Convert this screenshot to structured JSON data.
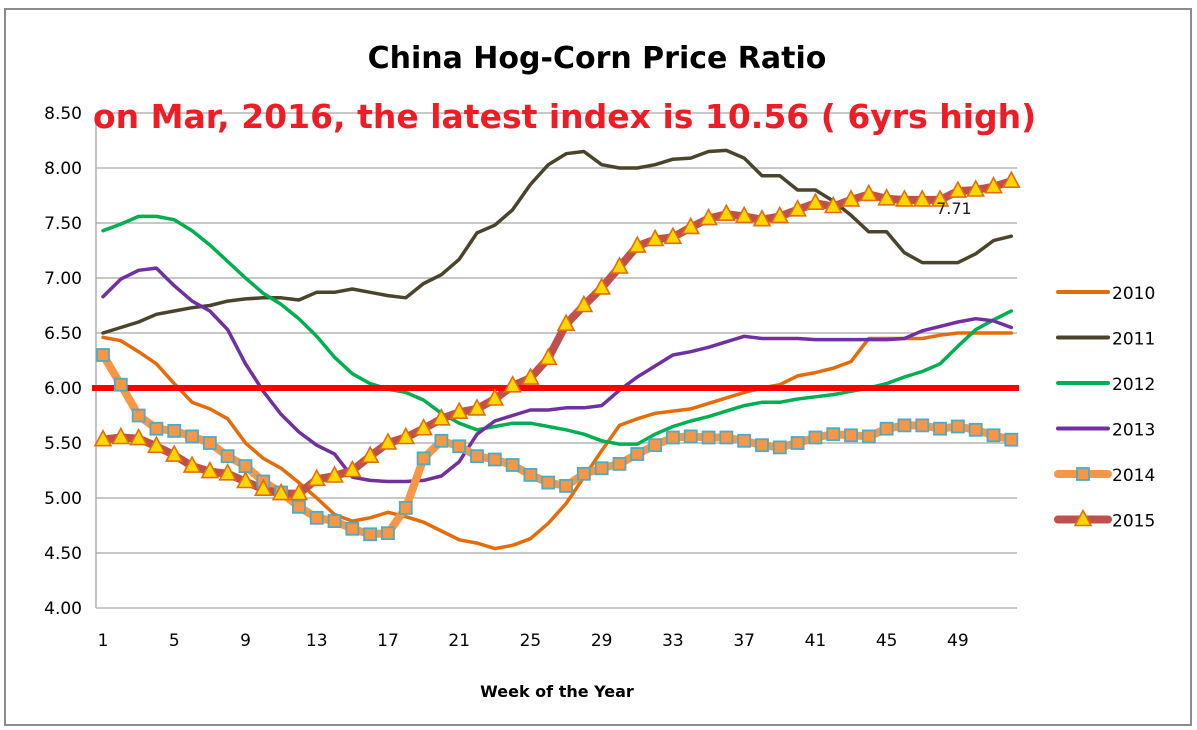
{
  "chart_data": {
    "type": "line",
    "title": "China Hog-Corn Price Ratio",
    "subtitle": "on Mar, 2016, the latest index is 10.56 ( 6yrs high)",
    "xlabel": "Week of the Year",
    "ylabel": "",
    "ylim": [
      4.0,
      8.5
    ],
    "yticks": [
      "4.00",
      "4.50",
      "5.00",
      "5.50",
      "6.00",
      "6.50",
      "7.00",
      "7.50",
      "8.00",
      "8.50"
    ],
    "ytick_values": [
      4.0,
      4.5,
      5.0,
      5.5,
      6.0,
      6.5,
      7.0,
      7.5,
      8.0,
      8.5
    ],
    "xlim": [
      1,
      52
    ],
    "xticks": [
      "1",
      "5",
      "9",
      "13",
      "17",
      "21",
      "25",
      "29",
      "33",
      "37",
      "41",
      "45",
      "49"
    ],
    "xtick_values": [
      1,
      5,
      9,
      13,
      17,
      21,
      25,
      29,
      33,
      37,
      41,
      45,
      49
    ],
    "grid": true,
    "legend_position": "right",
    "reference_line": {
      "value": 6.0,
      "color": "#ff0000"
    },
    "annotations": [
      {
        "text": "7.71",
        "series": "2015",
        "week": 48,
        "value": 7.71
      }
    ],
    "series": [
      {
        "name": "2010",
        "color": "#e46c0a",
        "marker": "none",
        "values": [
          6.46,
          6.43,
          6.33,
          6.22,
          6.04,
          5.87,
          5.81,
          5.72,
          5.5,
          5.36,
          5.27,
          5.14,
          5.0,
          4.85,
          4.79,
          4.82,
          4.87,
          4.83,
          4.78,
          4.7,
          4.62,
          4.59,
          4.54,
          4.57,
          4.63,
          4.77,
          4.95,
          5.19,
          5.43,
          5.66,
          5.72,
          5.77,
          5.79,
          5.81,
          5.86,
          5.91,
          5.96,
          6.0,
          6.03,
          6.11,
          6.14,
          6.18,
          6.24,
          6.45,
          6.45,
          6.45,
          6.45,
          6.48,
          6.5,
          6.5,
          6.5,
          6.5
        ]
      },
      {
        "name": "2011",
        "color": "#4a452a",
        "marker": "none",
        "values": [
          6.5,
          6.55,
          6.6,
          6.67,
          6.7,
          6.73,
          6.75,
          6.79,
          6.81,
          6.82,
          6.82,
          6.8,
          6.87,
          6.87,
          6.9,
          6.87,
          6.84,
          6.82,
          6.95,
          7.03,
          7.17,
          7.41,
          7.48,
          7.62,
          7.85,
          8.03,
          8.13,
          8.15,
          8.03,
          8.0,
          8.0,
          8.03,
          8.08,
          8.09,
          8.15,
          8.16,
          8.09,
          7.93,
          7.93,
          7.8,
          7.8,
          7.7,
          7.57,
          7.42,
          7.42,
          7.23,
          7.14,
          7.14,
          7.14,
          7.22,
          7.34,
          7.38
        ]
      },
      {
        "name": "2012",
        "color": "#00b050",
        "marker": "none",
        "values": [
          7.43,
          7.49,
          7.56,
          7.56,
          7.53,
          7.43,
          7.3,
          7.15,
          7.0,
          6.86,
          6.76,
          6.63,
          6.47,
          6.28,
          6.13,
          6.04,
          5.99,
          5.96,
          5.89,
          5.77,
          5.68,
          5.62,
          5.65,
          5.68,
          5.68,
          5.65,
          5.62,
          5.58,
          5.52,
          5.49,
          5.49,
          5.58,
          5.65,
          5.7,
          5.74,
          5.79,
          5.84,
          5.87,
          5.87,
          5.9,
          5.92,
          5.94,
          5.97,
          6.0,
          6.04,
          6.1,
          6.15,
          6.22,
          6.38,
          6.53,
          6.62,
          6.7
        ]
      },
      {
        "name": "2013",
        "color": "#7030a0",
        "marker": "none",
        "values": [
          6.83,
          6.99,
          7.07,
          7.09,
          6.93,
          6.79,
          6.7,
          6.53,
          6.22,
          5.97,
          5.76,
          5.6,
          5.48,
          5.4,
          5.19,
          5.16,
          5.15,
          5.15,
          5.16,
          5.2,
          5.33,
          5.58,
          5.7,
          5.75,
          5.8,
          5.8,
          5.82,
          5.82,
          5.84,
          5.98,
          6.1,
          6.2,
          6.3,
          6.33,
          6.37,
          6.42,
          6.47,
          6.45,
          6.45,
          6.45,
          6.44,
          6.44,
          6.44,
          6.44,
          6.44,
          6.45,
          6.52,
          6.56,
          6.6,
          6.63,
          6.61,
          6.55
        ]
      },
      {
        "name": "2014",
        "color": "#f79646",
        "marker": "square",
        "marker_edge": "#4bacc6",
        "values": [
          6.3,
          6.03,
          5.75,
          5.63,
          5.61,
          5.56,
          5.5,
          5.38,
          5.29,
          5.15,
          5.05,
          4.92,
          4.82,
          4.79,
          4.72,
          4.67,
          4.68,
          4.91,
          5.36,
          5.52,
          5.47,
          5.38,
          5.35,
          5.3,
          5.21,
          5.14,
          5.11,
          5.22,
          5.27,
          5.31,
          5.4,
          5.48,
          5.55,
          5.56,
          5.55,
          5.55,
          5.52,
          5.48,
          5.46,
          5.5,
          5.55,
          5.58,
          5.57,
          5.56,
          5.63,
          5.66,
          5.66,
          5.63,
          5.65,
          5.62,
          5.57,
          5.53
        ]
      },
      {
        "name": "2015",
        "color": "#c0504d",
        "marker": "triangle",
        "marker_fill": "#ffd700",
        "marker_edge": "#e46c0a",
        "values": [
          5.53,
          5.55,
          5.54,
          5.47,
          5.39,
          5.29,
          5.24,
          5.22,
          5.15,
          5.08,
          5.04,
          5.04,
          5.17,
          5.2,
          5.25,
          5.38,
          5.5,
          5.55,
          5.63,
          5.72,
          5.78,
          5.81,
          5.9,
          6.02,
          6.09,
          6.27,
          6.58,
          6.75,
          6.91,
          7.1,
          7.29,
          7.35,
          7.37,
          7.46,
          7.54,
          7.58,
          7.56,
          7.53,
          7.56,
          7.62,
          7.68,
          7.65,
          7.71,
          7.76,
          7.72,
          7.71,
          7.71,
          7.71,
          7.79,
          7.8,
          7.83,
          7.88
        ]
      }
    ]
  }
}
